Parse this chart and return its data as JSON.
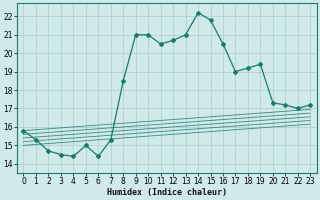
{
  "title": "",
  "xlabel": "Humidex (Indice chaleur)",
  "ylabel": "",
  "xlim": [
    -0.5,
    23.5
  ],
  "ylim": [
    13.5,
    22.7
  ],
  "yticks": [
    14,
    15,
    16,
    17,
    18,
    19,
    20,
    21,
    22
  ],
  "xticks": [
    0,
    1,
    2,
    3,
    4,
    5,
    6,
    7,
    8,
    9,
    10,
    11,
    12,
    13,
    14,
    15,
    16,
    17,
    18,
    19,
    20,
    21,
    22,
    23
  ],
  "background_color": "#d0eaea",
  "grid_color": "#aacccc",
  "line_color": "#1a7a6e",
  "main_series": [
    15.8,
    15.3,
    14.7,
    14.5,
    14.4,
    15.0,
    14.4,
    15.3,
    18.5,
    21.0,
    21.0,
    20.5,
    20.7,
    21.0,
    22.2,
    21.8,
    20.5,
    19.0,
    19.2,
    19.4,
    17.3,
    17.2,
    17.0,
    17.2
  ],
  "diagonal_series": [
    [
      15.8,
      15.85,
      15.9,
      15.95,
      16.0,
      16.05,
      16.1,
      16.15,
      16.2,
      16.25,
      16.3,
      16.35,
      16.4,
      16.45,
      16.5,
      16.55,
      16.6,
      16.65,
      16.7,
      16.75,
      16.8,
      16.85,
      16.9,
      16.95
    ],
    [
      15.6,
      15.65,
      15.7,
      15.75,
      15.8,
      15.85,
      15.9,
      15.95,
      16.0,
      16.05,
      16.1,
      16.15,
      16.2,
      16.25,
      16.3,
      16.35,
      16.4,
      16.45,
      16.5,
      16.55,
      16.6,
      16.65,
      16.7,
      16.75
    ],
    [
      15.4,
      15.45,
      15.5,
      15.55,
      15.6,
      15.65,
      15.7,
      15.75,
      15.8,
      15.85,
      15.9,
      15.95,
      16.0,
      16.05,
      16.1,
      16.15,
      16.2,
      16.25,
      16.3,
      16.35,
      16.4,
      16.45,
      16.5,
      16.55
    ],
    [
      15.2,
      15.25,
      15.3,
      15.35,
      15.4,
      15.45,
      15.5,
      15.55,
      15.6,
      15.65,
      15.7,
      15.75,
      15.8,
      15.85,
      15.9,
      15.95,
      16.0,
      16.05,
      16.1,
      16.15,
      16.2,
      16.25,
      16.3,
      16.35
    ],
    [
      15.0,
      15.05,
      15.1,
      15.15,
      15.2,
      15.25,
      15.3,
      15.35,
      15.4,
      15.45,
      15.5,
      15.55,
      15.6,
      15.65,
      15.7,
      15.75,
      15.8,
      15.85,
      15.9,
      15.95,
      16.0,
      16.05,
      16.1,
      16.15
    ]
  ],
  "tick_fontsize": 5.5,
  "xlabel_fontsize": 6.0,
  "marker": "D",
  "markersize": 2.0,
  "linewidth": 0.9,
  "diag_linewidth": 0.6
}
